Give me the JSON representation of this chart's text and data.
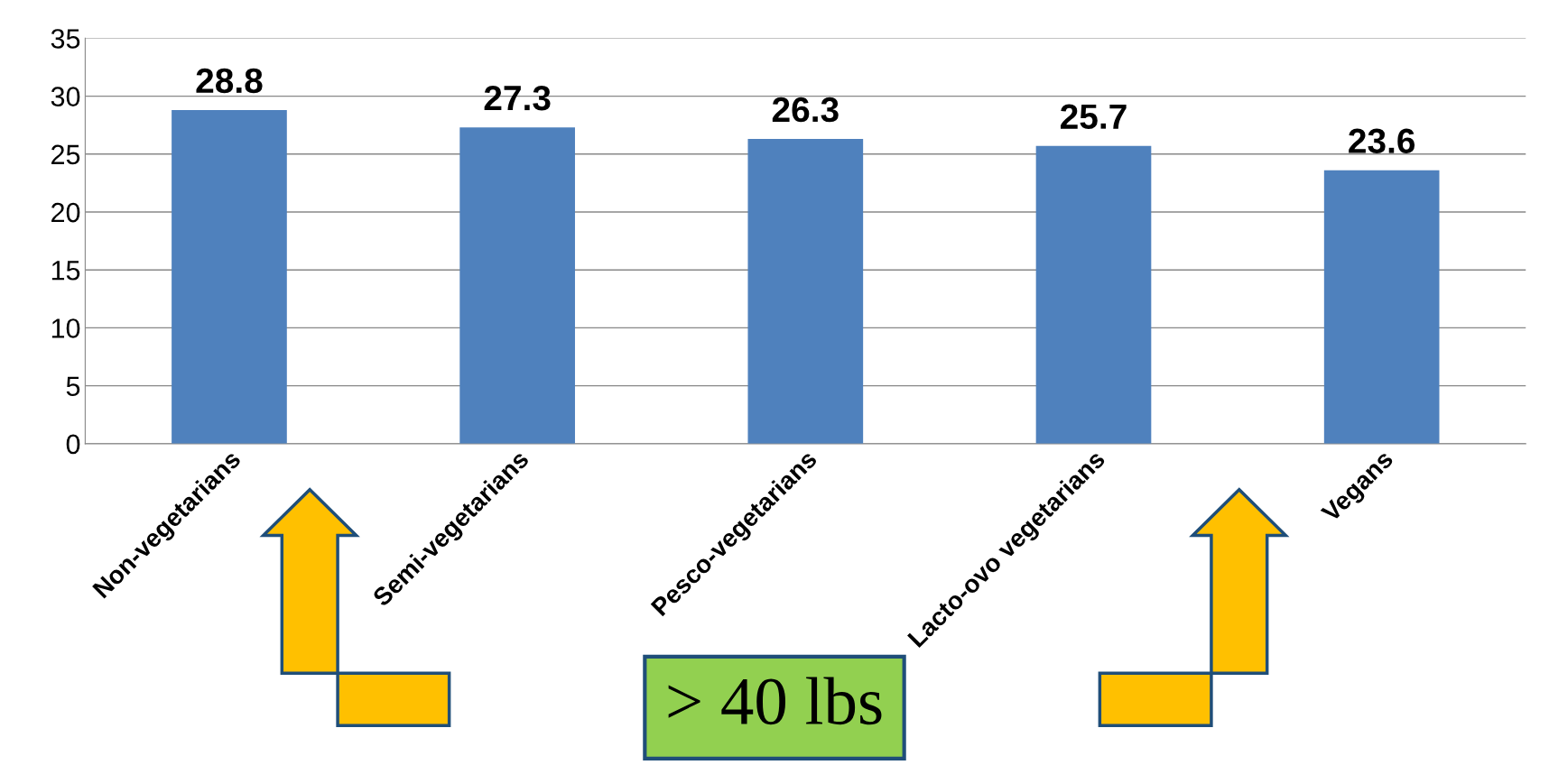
{
  "chart_data": {
    "type": "bar",
    "categories": [
      "Non-vegetarians",
      "Semi-vegetarians",
      "Pesco-vegetarians",
      "Lacto-ovo vegetarians",
      "Vegans"
    ],
    "values": [
      28.8,
      27.3,
      26.3,
      25.7,
      23.6
    ],
    "color": "#4f81bd",
    "ylim": [
      0,
      35
    ],
    "yticks": [
      0,
      5,
      10,
      15,
      20,
      25,
      30,
      35
    ],
    "grid": "y",
    "data_labels": true,
    "annotations": [
      "> 40 lbs"
    ]
  }
}
